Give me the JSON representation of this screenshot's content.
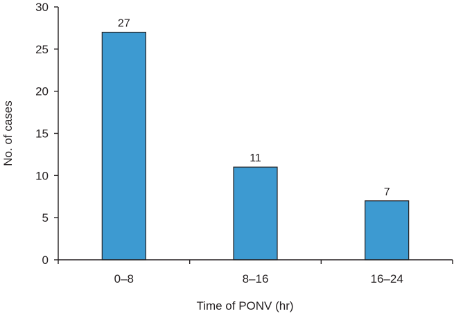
{
  "chart_data": {
    "type": "bar",
    "title": "",
    "xlabel": "Time of PONV (hr)",
    "ylabel": "No. of cases",
    "categories": [
      "0–8",
      "8–16",
      "16–24"
    ],
    "values": [
      27,
      11,
      7
    ],
    "data_labels": [
      "27",
      "11",
      "7"
    ],
    "ylim": [
      0,
      30
    ],
    "yticks": [
      0,
      5,
      10,
      15,
      20,
      25,
      30
    ],
    "ytick_labels": [
      "0",
      "5",
      "10",
      "15",
      "20",
      "25",
      "30"
    ],
    "grid": false,
    "legend": "none",
    "colors": {
      "bar": "#3d9ad1",
      "axis": "#231f20"
    }
  }
}
